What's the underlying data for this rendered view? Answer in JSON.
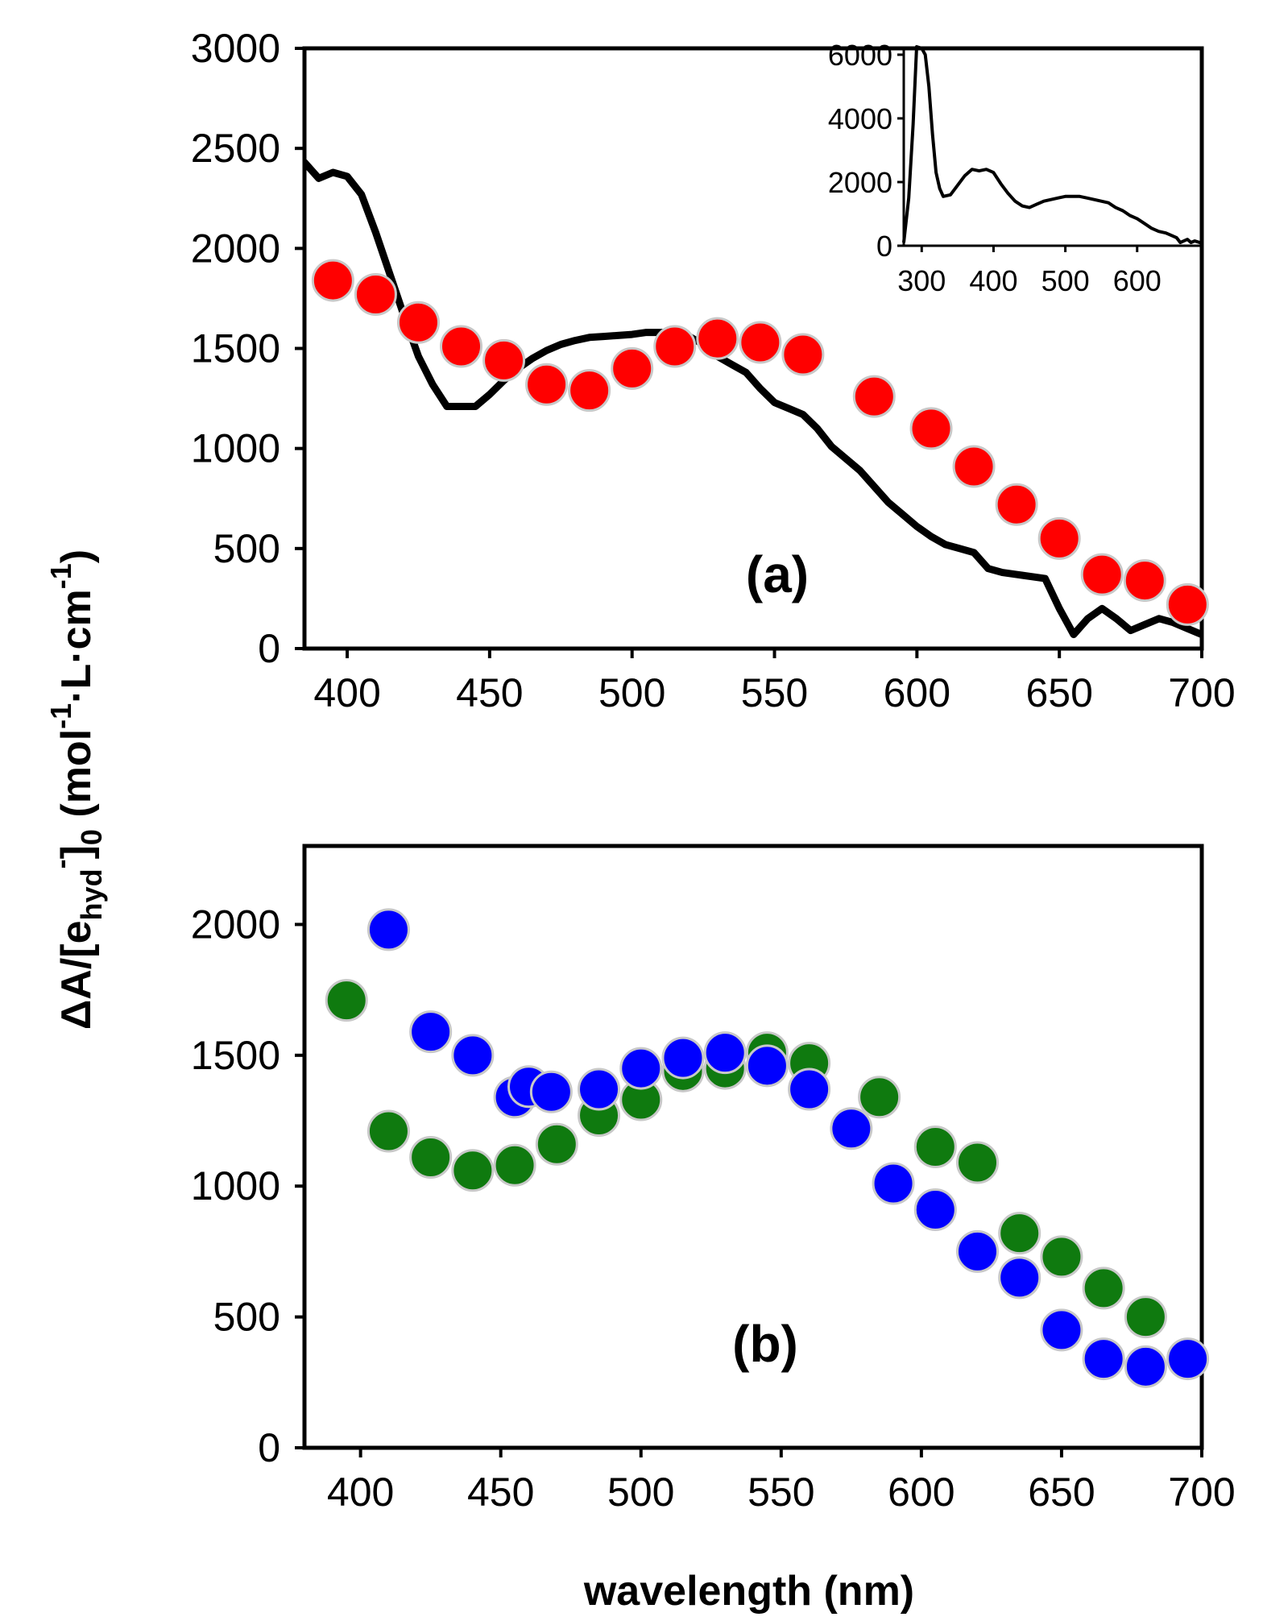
{
  "chart_data": [
    {
      "id": "a",
      "type": "scatter",
      "panel_label": "(a)",
      "xlim": [
        385,
        700
      ],
      "ylim": [
        0,
        3000
      ],
      "xticks": [
        400,
        450,
        500,
        550,
        600,
        650,
        700
      ],
      "yticks": [
        0,
        500,
        1000,
        1500,
        2000,
        2500,
        3000
      ],
      "series": [
        {
          "kind": "line",
          "color": "#000000",
          "x": [
            385,
            390,
            395,
            400,
            405,
            410,
            415,
            420,
            425,
            430,
            435,
            440,
            445,
            450,
            455,
            460,
            465,
            470,
            475,
            480,
            485,
            490,
            495,
            500,
            505,
            510,
            515,
            520,
            525,
            530,
            535,
            540,
            545,
            550,
            555,
            560,
            565,
            570,
            575,
            580,
            585,
            590,
            595,
            600,
            605,
            610,
            615,
            620,
            625,
            630,
            635,
            640,
            645,
            650,
            655,
            660,
            665,
            670,
            675,
            680,
            685,
            690,
            695,
            700
          ],
          "y": [
            2430,
            2350,
            2380,
            2360,
            2270,
            2080,
            1870,
            1660,
            1460,
            1320,
            1210,
            1210,
            1210,
            1270,
            1340,
            1400,
            1450,
            1490,
            1520,
            1540,
            1555,
            1560,
            1565,
            1570,
            1580,
            1580,
            1580,
            1560,
            1520,
            1460,
            1420,
            1380,
            1300,
            1230,
            1200,
            1170,
            1100,
            1010,
            950,
            890,
            810,
            730,
            670,
            610,
            560,
            520,
            500,
            480,
            400,
            380,
            370,
            360,
            350,
            200,
            70,
            150,
            200,
            150,
            90,
            120,
            150,
            130,
            100,
            70
          ]
        },
        {
          "kind": "markers",
          "color": "#ff0000",
          "x": [
            395,
            410,
            425,
            440,
            455,
            470,
            485,
            500,
            515,
            530,
            545,
            560,
            585,
            605,
            620,
            635,
            650,
            665,
            680,
            695
          ],
          "y": [
            1840,
            1770,
            1630,
            1510,
            1440,
            1320,
            1290,
            1400,
            1510,
            1550,
            1530,
            1470,
            1260,
            1100,
            910,
            720,
            550,
            370,
            340,
            220
          ]
        }
      ]
    },
    {
      "id": "a-inset",
      "type": "line",
      "xlim": [
        275,
        690
      ],
      "ylim": [
        0,
        6200
      ],
      "xticks": [
        300,
        400,
        500,
        600
      ],
      "yticks": [
        0,
        2000,
        4000,
        6000
      ],
      "series": [
        {
          "color": "#000000",
          "x": [
            275,
            282,
            288,
            293,
            300,
            305,
            310,
            315,
            320,
            325,
            330,
            340,
            350,
            360,
            370,
            380,
            390,
            400,
            410,
            420,
            430,
            440,
            450,
            460,
            470,
            480,
            490,
            500,
            510,
            520,
            530,
            540,
            550,
            560,
            570,
            580,
            590,
            600,
            610,
            620,
            630,
            640,
            650,
            655,
            660,
            665,
            670,
            675,
            680,
            690
          ],
          "y": [
            100,
            1500,
            3800,
            6250,
            6200,
            6000,
            5000,
            3500,
            2300,
            1800,
            1550,
            1600,
            1900,
            2200,
            2400,
            2350,
            2400,
            2300,
            1950,
            1650,
            1400,
            1250,
            1200,
            1300,
            1400,
            1450,
            1500,
            1550,
            1550,
            1550,
            1500,
            1450,
            1400,
            1350,
            1200,
            1100,
            950,
            850,
            700,
            550,
            450,
            400,
            300,
            250,
            100,
            150,
            200,
            100,
            150,
            80
          ]
        }
      ]
    },
    {
      "id": "b",
      "type": "scatter",
      "panel_label": "(b)",
      "xlim": [
        380,
        700
      ],
      "ylim": [
        0,
        2300
      ],
      "xticks": [
        400,
        450,
        500,
        550,
        600,
        650,
        700
      ],
      "yticks": [
        0,
        500,
        1000,
        1500,
        2000
      ],
      "series": [
        {
          "kind": "markers",
          "color": "#0f7a0f",
          "x": [
            395,
            410,
            425,
            440,
            455,
            470,
            485,
            500,
            515,
            530,
            545,
            560,
            585,
            605,
            620,
            635,
            650,
            665,
            680
          ],
          "y": [
            1710,
            1210,
            1110,
            1060,
            1080,
            1160,
            1270,
            1330,
            1440,
            1450,
            1510,
            1470,
            1340,
            1150,
            1090,
            820,
            730,
            610,
            500
          ]
        },
        {
          "kind": "markers",
          "color": "#0000ff",
          "x": [
            410,
            425,
            440,
            455,
            460,
            468,
            485,
            500,
            515,
            530,
            545,
            560,
            575,
            590,
            605,
            620,
            635,
            650,
            665,
            680,
            695
          ],
          "y": [
            1980,
            1590,
            1500,
            1340,
            1380,
            1360,
            1370,
            1450,
            1490,
            1510,
            1460,
            1370,
            1220,
            1010,
            910,
            750,
            650,
            450,
            340,
            310,
            340
          ]
        }
      ]
    }
  ],
  "axes": {
    "x_title": "wavelength (nm)",
    "y_title_parts": {
      "lead": "ΔA/[e",
      "sub1": "hyd",
      "sup1": "-",
      "bracket": "]",
      "sub2": "0",
      "unit_open": " (mol",
      "sup2": "-1",
      "mid": "·L·cm",
      "sup3": "-1",
      "close": ")"
    }
  }
}
